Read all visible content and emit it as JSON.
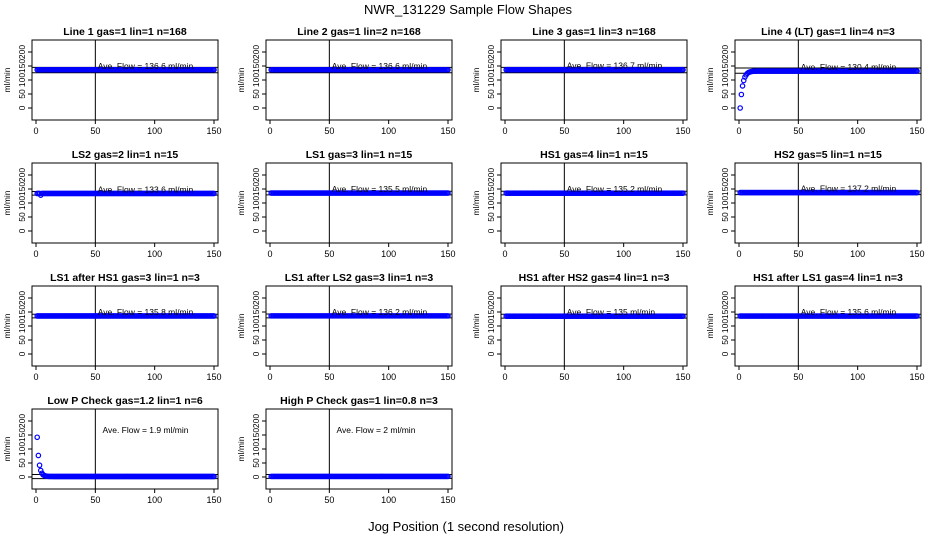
{
  "figure": {
    "title": "NWR_131229  Sample Flow Shapes",
    "xlabel": "Jog Position (1 second resolution)"
  },
  "colors": {
    "points": "#0000ff",
    "axes": "#000000",
    "text": "#000000"
  },
  "chart_data": [
    {
      "type": "scatter",
      "title": "Line 1 gas=1 lin=1 n=168",
      "ylabel": "ml/min",
      "xlim": [
        0,
        150
      ],
      "ylim": [
        0,
        200
      ],
      "xticks": [
        0,
        50,
        100,
        150
      ],
      "yticks": [
        0,
        50,
        100,
        150,
        200
      ],
      "vline": 50,
      "hlines": [
        126,
        145
      ],
      "annotation": "Ave. Flow = 136.6  ml/min",
      "profile": "flat",
      "level": 136.6,
      "n_points": 150
    },
    {
      "type": "scatter",
      "title": "Line 2 gas=1 lin=2 n=168",
      "ylabel": "ml/min",
      "xlim": [
        0,
        150
      ],
      "ylim": [
        0,
        200
      ],
      "xticks": [
        0,
        50,
        100,
        150
      ],
      "yticks": [
        0,
        50,
        100,
        150,
        200
      ],
      "vline": 50,
      "hlines": [
        126,
        145
      ],
      "annotation": "Ave. Flow = 136.6  ml/min",
      "profile": "flat",
      "level": 136.6,
      "n_points": 150
    },
    {
      "type": "scatter",
      "title": "Line 3 gas=1 lin=3 n=168",
      "ylabel": "ml/min",
      "xlim": [
        0,
        150
      ],
      "ylim": [
        0,
        200
      ],
      "xticks": [
        0,
        50,
        100,
        150
      ],
      "yticks": [
        0,
        50,
        100,
        150,
        200
      ],
      "vline": 50,
      "hlines": [
        126,
        145
      ],
      "annotation": "Ave. Flow = 136.7  ml/min",
      "profile": "flat",
      "level": 136.7,
      "n_points": 150
    },
    {
      "type": "scatter",
      "title": "Line 4 (LT) gas=1 lin=4 n=3",
      "ylabel": "ml/min",
      "xlim": [
        0,
        150
      ],
      "ylim": [
        0,
        200
      ],
      "xticks": [
        0,
        50,
        100,
        150
      ],
      "yticks": [
        0,
        50,
        100,
        150,
        200
      ],
      "vline": 50,
      "hlines": [
        124,
        143
      ],
      "annotation": "Ave. Flow = 130.4  ml/min",
      "profile": "rise",
      "level": 132,
      "n_points": 150
    },
    {
      "type": "scatter",
      "title": "LS2 gas=2 lin=1 n=15",
      "ylabel": "ml/min",
      "xlim": [
        0,
        150
      ],
      "ylim": [
        0,
        200
      ],
      "xticks": [
        0,
        50,
        100,
        150
      ],
      "yticks": [
        0,
        50,
        100,
        150,
        200
      ],
      "vline": 50,
      "hlines": [
        128,
        141
      ],
      "annotation": "Ave. Flow = 133.6  ml/min",
      "profile": "flat",
      "level": 134,
      "n_points": 150
    },
    {
      "type": "scatter",
      "title": "LS1 gas=3 lin=1 n=15",
      "ylabel": "ml/min",
      "xlim": [
        0,
        150
      ],
      "ylim": [
        0,
        200
      ],
      "xticks": [
        0,
        50,
        100,
        150
      ],
      "yticks": [
        0,
        50,
        100,
        150,
        200
      ],
      "vline": 50,
      "hlines": [
        129,
        142
      ],
      "annotation": "Ave. Flow = 135.5  ml/min",
      "profile": "flat",
      "level": 135.5,
      "n_points": 150
    },
    {
      "type": "scatter",
      "title": "HS1 gas=4 lin=1 n=15",
      "ylabel": "ml/min",
      "xlim": [
        0,
        150
      ],
      "ylim": [
        0,
        200
      ],
      "xticks": [
        0,
        50,
        100,
        150
      ],
      "yticks": [
        0,
        50,
        100,
        150,
        200
      ],
      "vline": 50,
      "hlines": [
        129,
        142
      ],
      "annotation": "Ave. Flow = 135.2  ml/min",
      "profile": "flat",
      "level": 135.2,
      "n_points": 150
    },
    {
      "type": "scatter",
      "title": "HS2 gas=5 lin=1 n=15",
      "ylabel": "ml/min",
      "xlim": [
        0,
        150
      ],
      "ylim": [
        0,
        200
      ],
      "xticks": [
        0,
        50,
        100,
        150
      ],
      "yticks": [
        0,
        50,
        100,
        150,
        200
      ],
      "vline": 50,
      "hlines": [
        130,
        143
      ],
      "annotation": "Ave. Flow = 137.2  ml/min",
      "profile": "flat",
      "level": 137.2,
      "n_points": 150
    },
    {
      "type": "scatter",
      "title": "LS1 after HS1 gas=3 lin=1 n=3",
      "ylabel": "ml/min",
      "xlim": [
        0,
        150
      ],
      "ylim": [
        0,
        200
      ],
      "xticks": [
        0,
        50,
        100,
        150
      ],
      "yticks": [
        0,
        50,
        100,
        150,
        200
      ],
      "vline": 50,
      "hlines": [
        129,
        142
      ],
      "annotation": "Ave. Flow = 135.8  ml/min",
      "profile": "flat",
      "level": 135.8,
      "n_points": 150
    },
    {
      "type": "scatter",
      "title": "LS1 after LS2 gas=3 lin=1 n=3",
      "ylabel": "ml/min",
      "xlim": [
        0,
        150
      ],
      "ylim": [
        0,
        200
      ],
      "xticks": [
        0,
        50,
        100,
        150
      ],
      "yticks": [
        0,
        50,
        100,
        150,
        200
      ],
      "vline": 50,
      "hlines": [
        129,
        143
      ],
      "annotation": "Ave. Flow = 136.2  ml/min",
      "profile": "flat",
      "level": 136.2,
      "n_points": 150
    },
    {
      "type": "scatter",
      "title": "HS1 after HS2 gas=4 lin=1 n=3",
      "ylabel": "ml/min",
      "xlim": [
        0,
        150
      ],
      "ylim": [
        0,
        200
      ],
      "xticks": [
        0,
        50,
        100,
        150
      ],
      "yticks": [
        0,
        50,
        100,
        150,
        200
      ],
      "vline": 50,
      "hlines": [
        128,
        142
      ],
      "annotation": "Ave. Flow = 135  ml/min",
      "profile": "flat",
      "level": 135,
      "n_points": 150
    },
    {
      "type": "scatter",
      "title": "HS1 after LS1 gas=4 lin=1 n=3",
      "ylabel": "ml/min",
      "xlim": [
        0,
        150
      ],
      "ylim": [
        0,
        200
      ],
      "xticks": [
        0,
        50,
        100,
        150
      ],
      "yticks": [
        0,
        50,
        100,
        150,
        200
      ],
      "vline": 50,
      "hlines": [
        129,
        142
      ],
      "annotation": "Ave. Flow = 135.6  ml/min",
      "profile": "flat",
      "level": 135.6,
      "n_points": 150
    },
    {
      "type": "scatter",
      "title": "Low P Check gas=1.2 lin=1 n=6",
      "ylabel": "ml/min",
      "xlim": [
        0,
        150
      ],
      "ylim": [
        0,
        200
      ],
      "xticks": [
        0,
        50,
        100,
        150
      ],
      "yticks": [
        0,
        50,
        100,
        150,
        200
      ],
      "vline": 50,
      "hlines": [
        -6,
        9
      ],
      "annotation": "Ave. Flow = 1.9  ml/min",
      "profile": "decay",
      "level": 1.9,
      "n_points": 150
    },
    {
      "type": "scatter",
      "title": "High P Check gas=1 lin=0.8 n=3",
      "ylabel": "ml/min",
      "xlim": [
        0,
        150
      ],
      "ylim": [
        0,
        200
      ],
      "xticks": [
        0,
        50,
        100,
        150
      ],
      "yticks": [
        0,
        50,
        100,
        150,
        200
      ],
      "vline": 50,
      "hlines": [
        -5,
        9
      ],
      "annotation": "Ave. Flow = 2  ml/min",
      "profile": "flat",
      "level": 2,
      "n_points": 150
    }
  ]
}
